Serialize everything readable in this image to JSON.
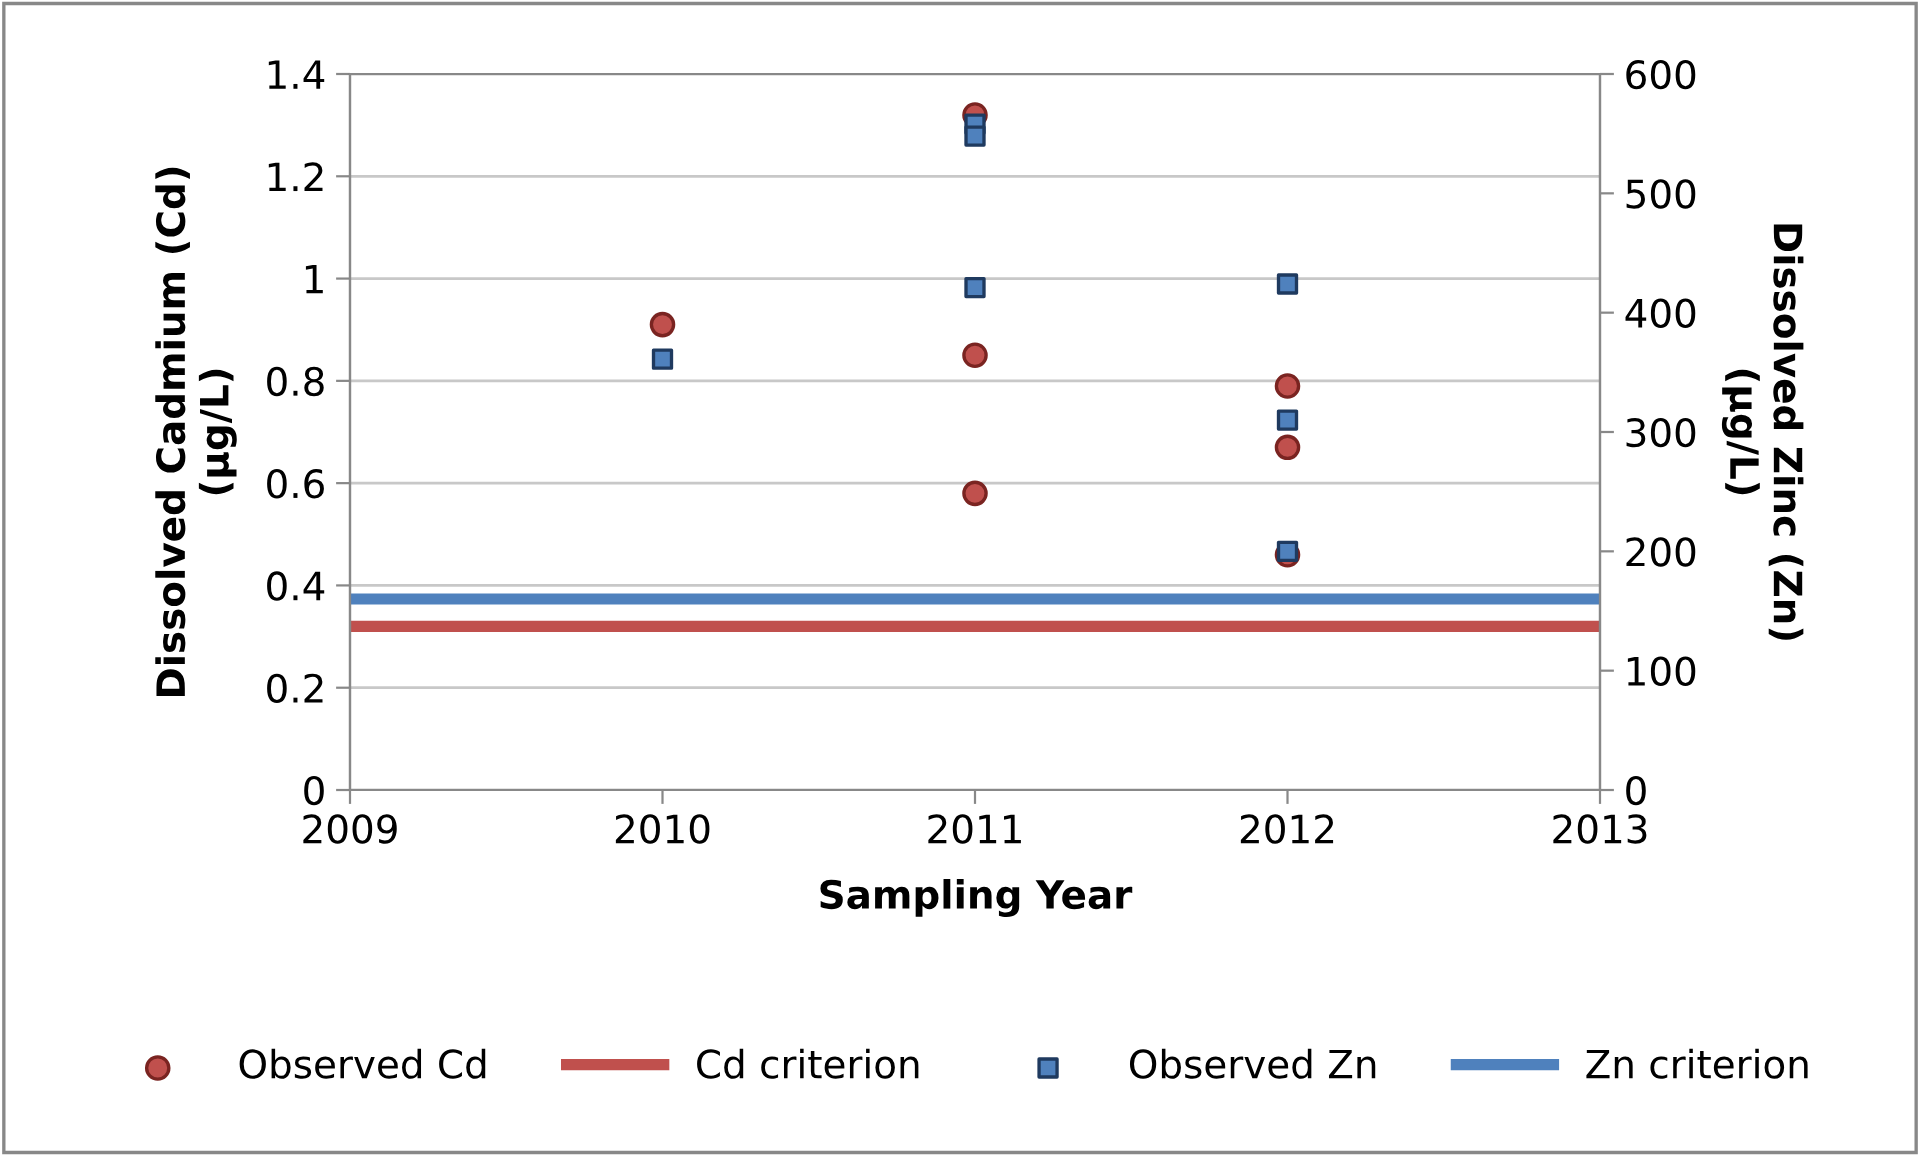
{
  "chart_data": {
    "type": "scatter",
    "xlabel": "Sampling Year",
    "ylabel": "Dissolved Cadmium (Cd)\n(µg/L)",
    "y2label": "Dissolved Zinc (Zn)\n(µg/L)",
    "xlim": [
      2009,
      2013
    ],
    "xticks": [
      2009,
      2010,
      2011,
      2012,
      2013
    ],
    "ylim": [
      0,
      1.4
    ],
    "yticks": [
      0,
      0.2,
      0.4,
      0.6,
      0.8,
      {
        "value": 1.0,
        "label": "1"
      },
      1.2,
      1.4
    ],
    "y2lim": [
      0,
      600
    ],
    "y2ticks": [
      0,
      100,
      200,
      300,
      400,
      500,
      600
    ],
    "grid": "y",
    "legend": "bottom",
    "series": [
      {
        "name": "Observed Cd",
        "marker": "circle",
        "color": "#c0504d",
        "x": [
          2010,
          2011,
          2011,
          2011,
          2012,
          2012,
          2012
        ],
        "values": [
          0.91,
          1.32,
          0.85,
          0.58,
          0.79,
          0.67,
          0.46
        ]
      },
      {
        "name": "Cd criterion",
        "type": "line",
        "marker": "none",
        "color": "#c0504d",
        "x": [
          2009,
          2013
        ],
        "values": [
          0.32,
          0.32
        ]
      },
      {
        "name": "Observed Zn",
        "marker": "square",
        "axis": "y2",
        "color": "#4f81bd",
        "x": [
          2010,
          2011,
          2011,
          2011,
          2012,
          2012,
          2012
        ],
        "values": [
          361,
          558,
          548,
          421,
          424,
          310,
          200
        ]
      },
      {
        "name": "Zn criterion",
        "type": "line",
        "marker": "none",
        "axis": "y2",
        "color": "#4f81bd",
        "x": [
          2009,
          2013
        ],
        "values": [
          160,
          160
        ]
      }
    ]
  }
}
